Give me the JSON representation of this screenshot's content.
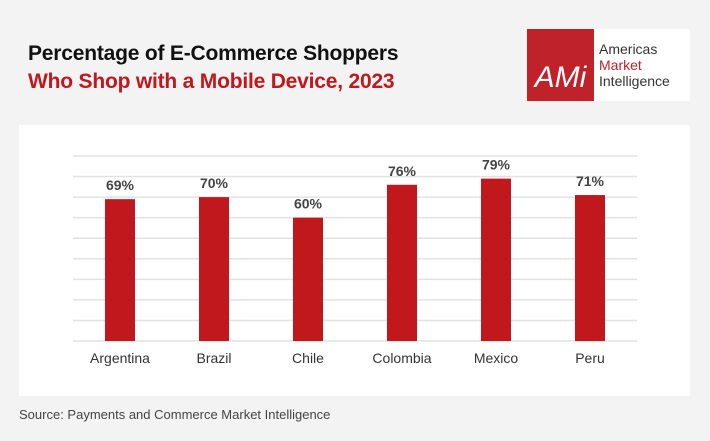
{
  "title_line1": "Percentage of E-Commerce Shoppers",
  "title_line2": "Who Shop with a Mobile Device, 2023",
  "logo": {
    "mark": "AMi",
    "line1": "Americas",
    "line2": "Market",
    "line3": "Intelligence"
  },
  "source": "Source: Payments and Commerce Market Intelligence",
  "colors": {
    "bar": "#c0181d",
    "grid": "#e2e2e2"
  },
  "chart_data": {
    "type": "bar",
    "title": "Percentage of E-Commerce Shoppers Who Shop with a Mobile Device, 2023",
    "categories": [
      "Argentina",
      "Brazil",
      "Chile",
      "Colombia",
      "Mexico",
      "Peru"
    ],
    "values": [
      69,
      70,
      60,
      76,
      79,
      71
    ],
    "labels": [
      "69%",
      "70%",
      "60%",
      "76%",
      "79%",
      "71%"
    ],
    "xlabel": "",
    "ylabel": "",
    "ylim": [
      0,
      90
    ],
    "grid_step": 10,
    "grid": true
  }
}
